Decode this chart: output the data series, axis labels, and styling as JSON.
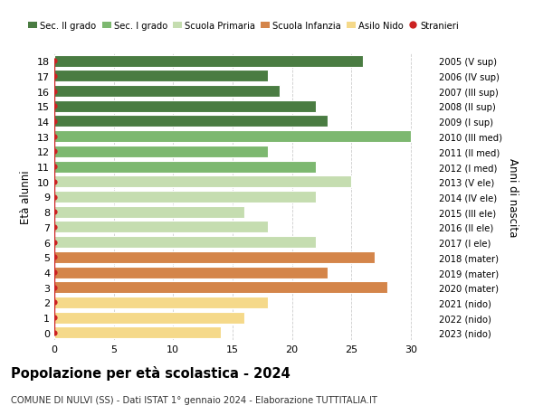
{
  "title": "Popolazione per età scolastica - 2024",
  "subtitle": "COMUNE DI NULVI (SS) - Dati ISTAT 1° gennaio 2024 - Elaborazione TUTTITALIA.IT",
  "ylabel_left": "Età alunni",
  "ylabel_right": "Anni di nascita",
  "xlim": [
    0,
    32
  ],
  "xticks": [
    0,
    5,
    10,
    15,
    20,
    25,
    30
  ],
  "ages": [
    18,
    17,
    16,
    15,
    14,
    13,
    12,
    11,
    10,
    9,
    8,
    7,
    6,
    5,
    4,
    3,
    2,
    1,
    0
  ],
  "values": [
    26,
    18,
    19,
    22,
    23,
    30,
    18,
    22,
    25,
    22,
    16,
    18,
    22,
    27,
    23,
    28,
    18,
    16,
    14
  ],
  "right_labels": [
    "2005 (V sup)",
    "2006 (IV sup)",
    "2007 (III sup)",
    "2008 (II sup)",
    "2009 (I sup)",
    "2010 (III med)",
    "2011 (II med)",
    "2012 (I med)",
    "2013 (V ele)",
    "2014 (IV ele)",
    "2015 (III ele)",
    "2016 (II ele)",
    "2017 (I ele)",
    "2018 (mater)",
    "2019 (mater)",
    "2020 (mater)",
    "2021 (nido)",
    "2022 (nido)",
    "2023 (nido)"
  ],
  "bar_colors": [
    "#4a7c42",
    "#4a7c42",
    "#4a7c42",
    "#4a7c42",
    "#4a7c42",
    "#7db870",
    "#7db870",
    "#7db870",
    "#c5ddb0",
    "#c5ddb0",
    "#c5ddb0",
    "#c5ddb0",
    "#c5ddb0",
    "#d4854a",
    "#d4854a",
    "#d4854a",
    "#f5d98a",
    "#f5d98a",
    "#f5d98a"
  ],
  "stranieri_color": "#cc2222",
  "legend_items": [
    {
      "label": "Sec. II grado",
      "color": "#4a7c42",
      "type": "patch"
    },
    {
      "label": "Sec. I grado",
      "color": "#7db870",
      "type": "patch"
    },
    {
      "label": "Scuola Primaria",
      "color": "#c5ddb0",
      "type": "patch"
    },
    {
      "label": "Scuola Infanzia",
      "color": "#d4854a",
      "type": "patch"
    },
    {
      "label": "Asilo Nido",
      "color": "#f5d98a",
      "type": "patch"
    },
    {
      "label": "Stranieri",
      "color": "#cc2222",
      "type": "dot"
    }
  ],
  "background_color": "#ffffff",
  "grid_color": "#cccccc",
  "bar_height": 0.78
}
